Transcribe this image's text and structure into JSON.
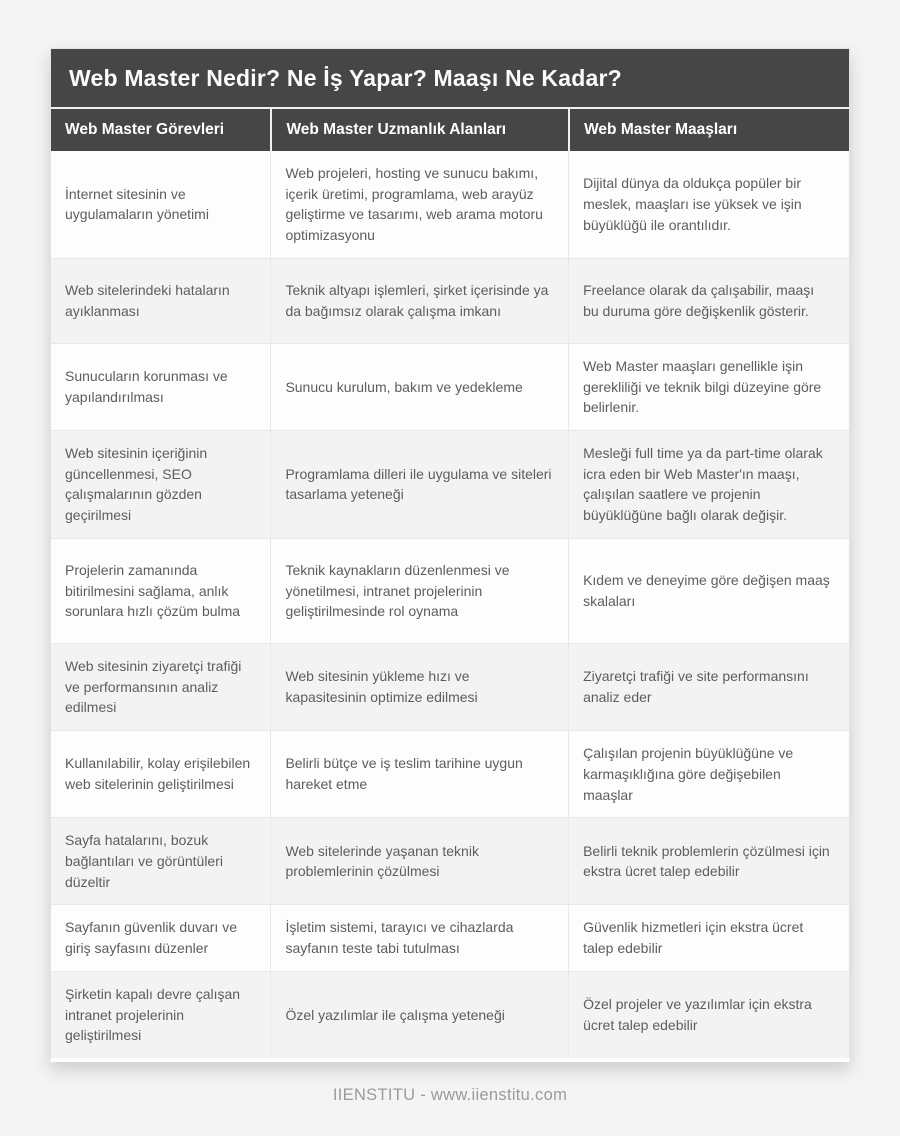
{
  "header": {
    "title": "Web Master Nedir? Ne İş Yapar? Maaşı Ne Kadar?"
  },
  "chart_data": {
    "type": "table",
    "title": "Web Master Nedir? Ne İş Yapar? Maaşı Ne Kadar?",
    "columns": [
      "Web Master Görevleri",
      "Web Master Uzmanlık Alanları",
      "Web Master Maaşları"
    ],
    "rows": [
      [
        "İnternet sitesinin ve uygulamaların yönetimi",
        "Web projeleri, hosting ve sunucu bakımı, içerik üretimi, programlama, web arayüz geliştirme ve tasarımı, web arama motoru optimizasyonu",
        "Dijital dünya da oldukça popüler bir meslek, maaşları ise yüksek ve işin büyüklüğü ile orantılıdır."
      ],
      [
        "Web sitelerindeki hataların ayıklanması",
        "Teknik altyapı işlemleri, şirket içerisinde ya da bağımsız olarak çalışma imkanı",
        "Freelance olarak da çalışabilir, maaşı bu duruma göre değişkenlik gösterir."
      ],
      [
        "Sunucuların korunması ve yapılandırılması",
        "Sunucu kurulum, bakım ve yedekleme",
        "Web Master maaşları genellikle işin gerekliliği ve teknik bilgi düzeyine göre belirlenir."
      ],
      [
        "Web sitesinin içeriğinin güncellenmesi, SEO çalışmalarının gözden geçirilmesi",
        "Programlama dilleri ile uygulama ve siteleri tasarlama yeteneği",
        "Mesleği full time ya da part-time olarak icra eden bir Web Master'ın maaşı, çalışılan saatlere ve projenin büyüklüğüne bağlı olarak değişir."
      ],
      [
        "Projelerin zamanında bitirilmesini sağlama, anlık sorunlara hızlı çözüm bulma",
        "Teknik kaynakların düzenlenmesi ve yönetilmesi, intranet projelerinin geliştirilmesinde rol oynama",
        "Kıdem ve deneyime göre değişen maaş skalaları"
      ],
      [
        "Web sitesinin ziyaretçi trafiği ve performansının analiz edilmesi",
        "Web sitesinin yükleme hızı ve kapasitesinin optimize edilmesi",
        "Ziyaretçi trafiği ve site performansını analiz eder"
      ],
      [
        "Kullanılabilir, kolay erişilebilen web sitelerinin geliştirilmesi",
        "Belirli bütçe ve iş teslim tarihine uygun hareket etme",
        "Çalışılan projenin büyüklüğüne ve karmaşıklığına göre değişebilen maaşlar"
      ],
      [
        "Sayfa hatalarını, bozuk bağlantıları ve görüntüleri düzeltir",
        "Web sitelerinde yaşanan teknik problemlerinin çözülmesi",
        "Belirli teknik problemlerin çözülmesi için ekstra ücret talep edebilir"
      ],
      [
        "Sayfanın güvenlik duvarı ve giriş sayfasını düzenler",
        "İşletim sistemi, tarayıcı ve cihazlarda sayfanın teste tabi tutulması",
        "Güvenlik hizmetleri için ekstra ücret talep edebilir"
      ],
      [
        "Şirketin kapalı devre çalışan intranet projelerinin geliştirilmesi",
        "Özel yazılımlar ile çalışma yeteneği",
        "Özel projeler ve yazılımlar için ekstra ücret talep edebilir"
      ]
    ],
    "layout": {
      "legend": "none",
      "grid": "on",
      "header_bg": "#464646",
      "header_text_color": "#ffffff",
      "row_alt_colors": [
        "#fdfdfd",
        "#f3f3f3"
      ],
      "body_text_color": "#5b5d60",
      "divider_color": "#e8e8e8"
    }
  },
  "footer": {
    "text": "IIENSTITU - www.iienstitu.com"
  }
}
